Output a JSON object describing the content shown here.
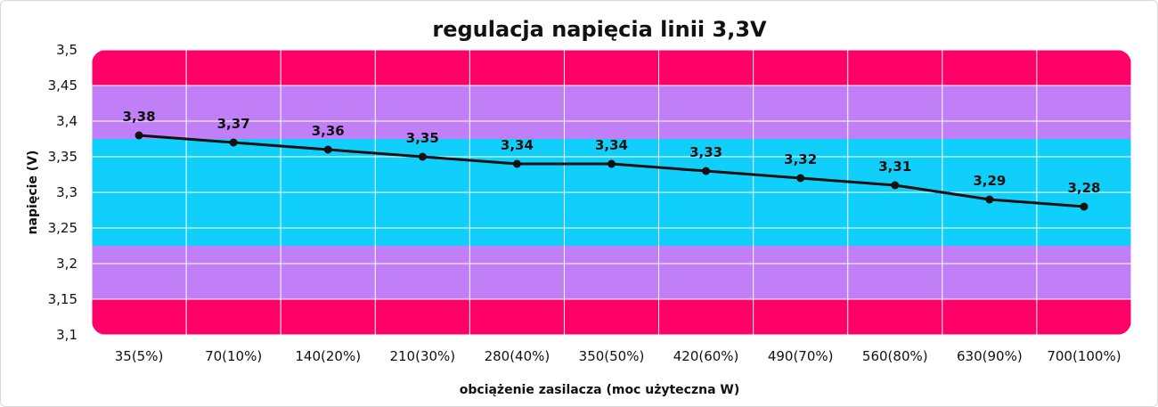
{
  "chart_data": {
    "type": "line",
    "title": "regulacja napięcia linii 3,3V",
    "xlabel": "obciążenie zasilacza (moc użyteczna W)",
    "ylabel": "napięcie (V)",
    "categories": [
      "35(5%)",
      "70(10%)",
      "140(20%)",
      "210(30%)",
      "280(40%)",
      "350(50%)",
      "420(60%)",
      "490(70%)",
      "560(80%)",
      "630(90%)",
      "700(100%)"
    ],
    "series": [
      {
        "values": [
          3.38,
          3.37,
          3.36,
          3.35,
          3.34,
          3.34,
          3.33,
          3.32,
          3.31,
          3.29,
          3.28
        ],
        "labels": [
          "3,38",
          "3,37",
          "3,36",
          "3,35",
          "3,34",
          "3,34",
          "3,33",
          "3,32",
          "3,31",
          "3,29",
          "3,28"
        ],
        "color": "#111111"
      }
    ],
    "ylim": [
      3.1,
      3.5
    ],
    "yticks": [
      3.1,
      3.15,
      3.2,
      3.25,
      3.3,
      3.35,
      3.4,
      3.45,
      3.5
    ],
    "ytick_labels": [
      "3,1",
      "3,15",
      "3,2",
      "3,25",
      "3,3",
      "3,35",
      "3,4",
      "3,45",
      "3,5"
    ],
    "grid": true,
    "bands": [
      {
        "from": 3.1,
        "to": 3.15,
        "color": "#ff0066"
      },
      {
        "from": 3.15,
        "to": 3.225,
        "color": "#c17ff7"
      },
      {
        "from": 3.225,
        "to": 3.375,
        "color": "#10cffa"
      },
      {
        "from": 3.375,
        "to": 3.45,
        "color": "#c17ff7"
      },
      {
        "from": 3.45,
        "to": 3.5,
        "color": "#ff0066"
      }
    ]
  }
}
